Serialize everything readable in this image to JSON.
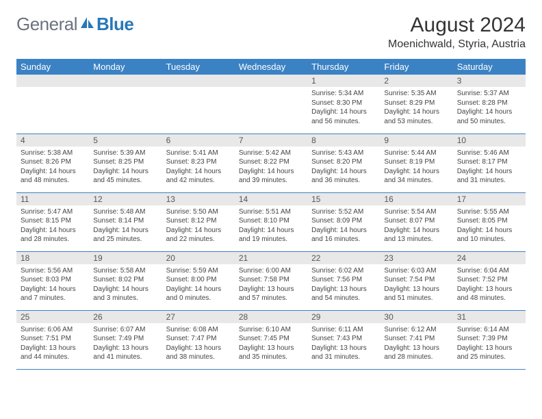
{
  "logo": {
    "gray": "General",
    "blue": "Blue"
  },
  "title": "August 2024",
  "location": "Moenichwald, Styria, Austria",
  "colors": {
    "header_bg": "#3b82c4",
    "header_text": "#ffffff",
    "daynum_bg": "#e8e8e8",
    "border": "#3b82c4",
    "logo_gray": "#6b7280",
    "logo_blue": "#2778b8"
  },
  "weekdays": [
    "Sunday",
    "Monday",
    "Tuesday",
    "Wednesday",
    "Thursday",
    "Friday",
    "Saturday"
  ],
  "labels": {
    "sunrise": "Sunrise: ",
    "sunset": "Sunset: ",
    "daylight": "Daylight: "
  },
  "weeks": [
    [
      null,
      null,
      null,
      null,
      {
        "n": "1",
        "sr": "5:34 AM",
        "ss": "8:30 PM",
        "dl": "14 hours and 56 minutes."
      },
      {
        "n": "2",
        "sr": "5:35 AM",
        "ss": "8:29 PM",
        "dl": "14 hours and 53 minutes."
      },
      {
        "n": "3",
        "sr": "5:37 AM",
        "ss": "8:28 PM",
        "dl": "14 hours and 50 minutes."
      }
    ],
    [
      {
        "n": "4",
        "sr": "5:38 AM",
        "ss": "8:26 PM",
        "dl": "14 hours and 48 minutes."
      },
      {
        "n": "5",
        "sr": "5:39 AM",
        "ss": "8:25 PM",
        "dl": "14 hours and 45 minutes."
      },
      {
        "n": "6",
        "sr": "5:41 AM",
        "ss": "8:23 PM",
        "dl": "14 hours and 42 minutes."
      },
      {
        "n": "7",
        "sr": "5:42 AM",
        "ss": "8:22 PM",
        "dl": "14 hours and 39 minutes."
      },
      {
        "n": "8",
        "sr": "5:43 AM",
        "ss": "8:20 PM",
        "dl": "14 hours and 36 minutes."
      },
      {
        "n": "9",
        "sr": "5:44 AM",
        "ss": "8:19 PM",
        "dl": "14 hours and 34 minutes."
      },
      {
        "n": "10",
        "sr": "5:46 AM",
        "ss": "8:17 PM",
        "dl": "14 hours and 31 minutes."
      }
    ],
    [
      {
        "n": "11",
        "sr": "5:47 AM",
        "ss": "8:15 PM",
        "dl": "14 hours and 28 minutes."
      },
      {
        "n": "12",
        "sr": "5:48 AM",
        "ss": "8:14 PM",
        "dl": "14 hours and 25 minutes."
      },
      {
        "n": "13",
        "sr": "5:50 AM",
        "ss": "8:12 PM",
        "dl": "14 hours and 22 minutes."
      },
      {
        "n": "14",
        "sr": "5:51 AM",
        "ss": "8:10 PM",
        "dl": "14 hours and 19 minutes."
      },
      {
        "n": "15",
        "sr": "5:52 AM",
        "ss": "8:09 PM",
        "dl": "14 hours and 16 minutes."
      },
      {
        "n": "16",
        "sr": "5:54 AM",
        "ss": "8:07 PM",
        "dl": "14 hours and 13 minutes."
      },
      {
        "n": "17",
        "sr": "5:55 AM",
        "ss": "8:05 PM",
        "dl": "14 hours and 10 minutes."
      }
    ],
    [
      {
        "n": "18",
        "sr": "5:56 AM",
        "ss": "8:03 PM",
        "dl": "14 hours and 7 minutes."
      },
      {
        "n": "19",
        "sr": "5:58 AM",
        "ss": "8:02 PM",
        "dl": "14 hours and 3 minutes."
      },
      {
        "n": "20",
        "sr": "5:59 AM",
        "ss": "8:00 PM",
        "dl": "14 hours and 0 minutes."
      },
      {
        "n": "21",
        "sr": "6:00 AM",
        "ss": "7:58 PM",
        "dl": "13 hours and 57 minutes."
      },
      {
        "n": "22",
        "sr": "6:02 AM",
        "ss": "7:56 PM",
        "dl": "13 hours and 54 minutes."
      },
      {
        "n": "23",
        "sr": "6:03 AM",
        "ss": "7:54 PM",
        "dl": "13 hours and 51 minutes."
      },
      {
        "n": "24",
        "sr": "6:04 AM",
        "ss": "7:52 PM",
        "dl": "13 hours and 48 minutes."
      }
    ],
    [
      {
        "n": "25",
        "sr": "6:06 AM",
        "ss": "7:51 PM",
        "dl": "13 hours and 44 minutes."
      },
      {
        "n": "26",
        "sr": "6:07 AM",
        "ss": "7:49 PM",
        "dl": "13 hours and 41 minutes."
      },
      {
        "n": "27",
        "sr": "6:08 AM",
        "ss": "7:47 PM",
        "dl": "13 hours and 38 minutes."
      },
      {
        "n": "28",
        "sr": "6:10 AM",
        "ss": "7:45 PM",
        "dl": "13 hours and 35 minutes."
      },
      {
        "n": "29",
        "sr": "6:11 AM",
        "ss": "7:43 PM",
        "dl": "13 hours and 31 minutes."
      },
      {
        "n": "30",
        "sr": "6:12 AM",
        "ss": "7:41 PM",
        "dl": "13 hours and 28 minutes."
      },
      {
        "n": "31",
        "sr": "6:14 AM",
        "ss": "7:39 PM",
        "dl": "13 hours and 25 minutes."
      }
    ]
  ]
}
